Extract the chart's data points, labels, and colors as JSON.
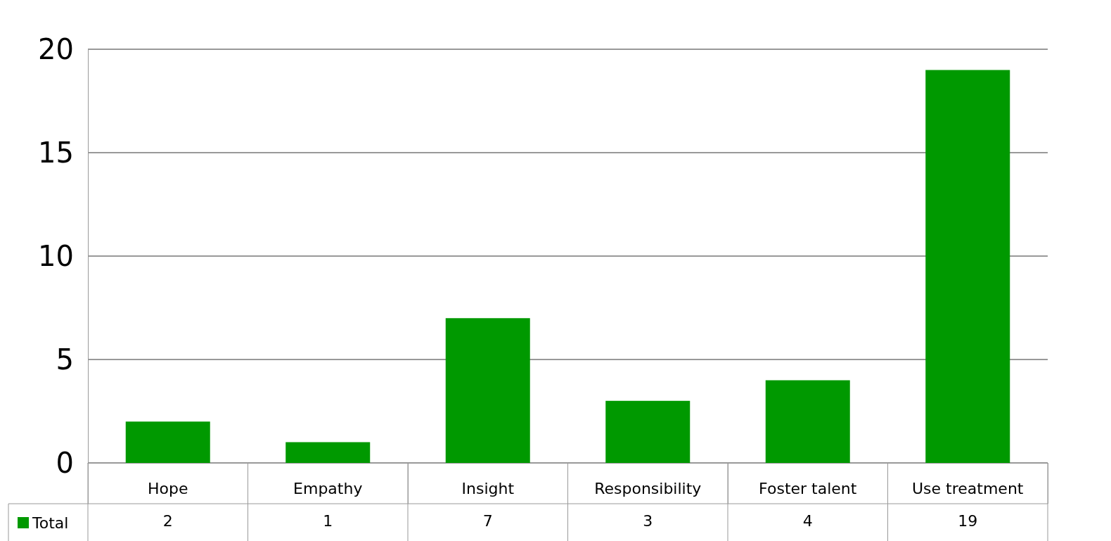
{
  "chart_data": {
    "type": "bar",
    "categories": [
      "Hope",
      "Empathy",
      "Insight",
      "Responsibility",
      "Foster talent",
      "Use treatment"
    ],
    "series": [
      {
        "name": "Total",
        "color": "#009900",
        "values": [
          2,
          1,
          7,
          3,
          4,
          19
        ]
      }
    ],
    "ylim": [
      0,
      20
    ],
    "yticks": [
      0,
      5,
      10,
      15,
      20
    ],
    "grid": true,
    "legend": "bottom left",
    "data_labels": true
  }
}
